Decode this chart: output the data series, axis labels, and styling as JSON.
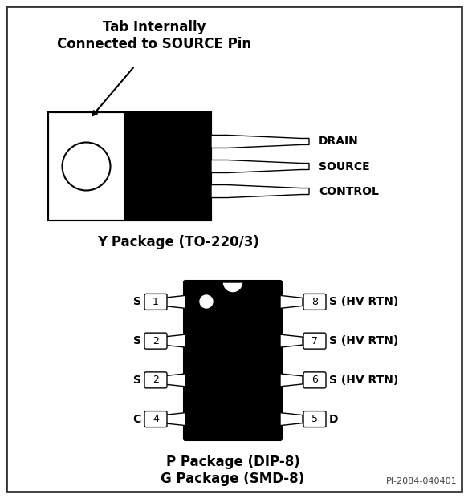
{
  "bg_color": "#ffffff",
  "border_color": "#333333",
  "title_text": "Tab Internally\nConnected to SOURCE Pin",
  "y_package_label": "Y Package (TO-220/3)",
  "p_package_label": "P Package (DIP-8)\nG Package (SMD-8)",
  "watermark": "PI-2084-040401",
  "drain_label": "DRAIN",
  "source_label": "SOURCE",
  "control_label": "CONTROL",
  "left_pins_labels": [
    "S",
    "S",
    "S",
    "C"
  ],
  "left_pins_numbers": [
    "1",
    "2",
    "2",
    "4"
  ],
  "right_pins_labels": [
    "S (HV RTN)",
    "S (HV RTN)",
    "S (HV RTN)",
    "D"
  ],
  "right_pins_numbers": [
    "8",
    "7",
    "6",
    "5"
  ]
}
